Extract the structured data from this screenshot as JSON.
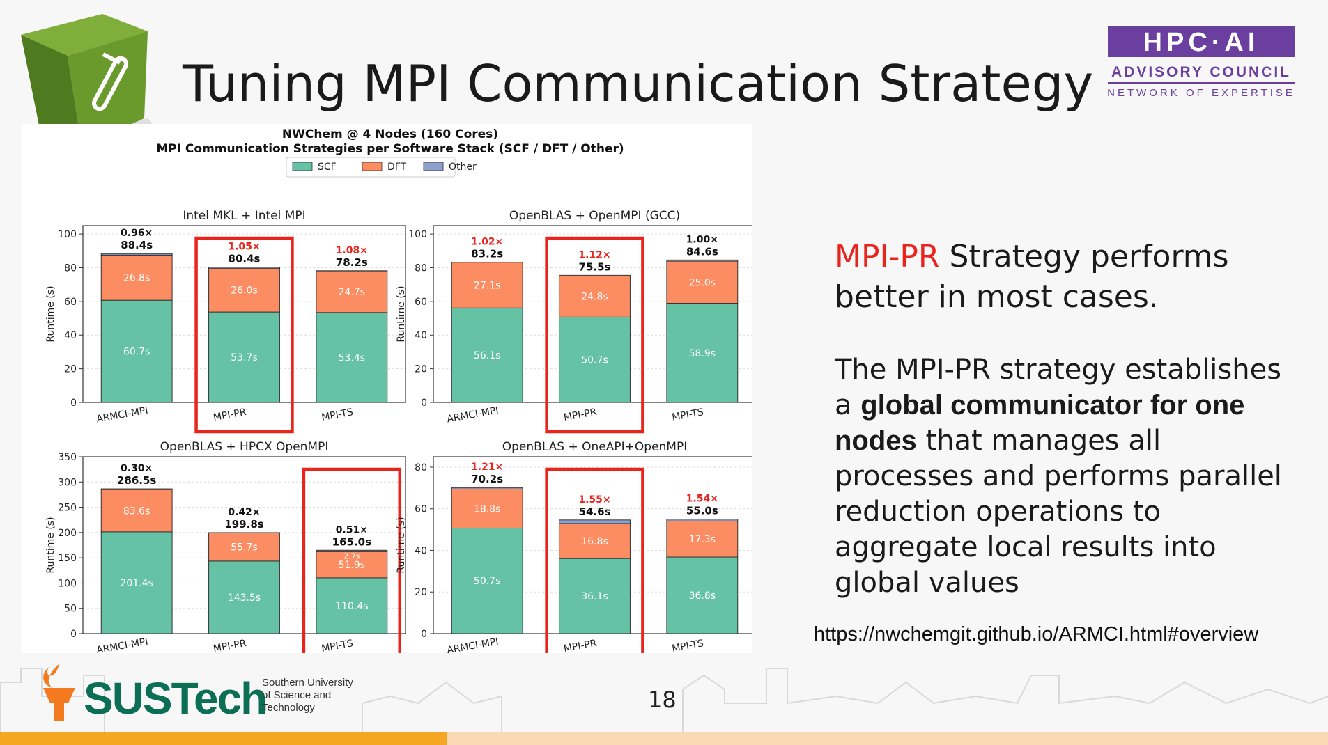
{
  "slide": {
    "title": "Tuning MPI Communication Strategy",
    "page_number": "18",
    "url": "https://nwchemgit.github.io/ARMCI.html#overview",
    "side_heading_highlight": "MPI-PR",
    "side_heading_rest": " Strategy performs better in most cases.",
    "side_body": {
      "part1": "The MPI-PR strategy establishes a ",
      "bold": "global communicator for one nodes",
      "part2": " that manages all processes and performs parallel reduction operations to aggregate local results into global values"
    },
    "hpc_logo": {
      "line1": "HPC·AI",
      "line2": "ADVISORY COUNCIL",
      "line3": "NETWORK OF EXPERTISE"
    },
    "sustech": {
      "name": "SUSTech",
      "sub": [
        "Southern University",
        "of Science and",
        "Technology"
      ]
    },
    "colors": {
      "scf": "#66c2a5",
      "dft": "#fc8d62",
      "other": "#8da0cb",
      "highlight": "#e8241d",
      "hpc_purple": "#6b3fa0"
    }
  },
  "chart_data": {
    "title": "NWChem @ 4 Nodes (160 Cores)",
    "subtitle": "MPI Communication Strategies per Software Stack (SCF / DFT / Other)",
    "legend": [
      "SCF",
      "DFT",
      "Other"
    ],
    "legend_placement": "top-center",
    "type": "bar",
    "stacked": true,
    "grid": true,
    "subplots": [
      {
        "title": "Intel MKL + Intel MPI",
        "ylabel": "Runtime (s)",
        "ylim": [
          0,
          105
        ],
        "yticks": [
          0,
          20,
          40,
          60,
          80,
          100
        ],
        "categories": [
          "ARMCI-MPI",
          "MPI-PR",
          "MPI-TS"
        ],
        "scf": [
          60.7,
          53.7,
          53.4
        ],
        "dft": [
          26.8,
          26.0,
          24.7
        ],
        "other": [
          0.9,
          0.7,
          0.1
        ],
        "scf_labels": [
          "60.7s",
          "53.7s",
          "53.4s"
        ],
        "dft_labels": [
          "26.8s",
          "26.0s",
          "24.7s"
        ],
        "speedups": [
          "0.96×",
          "1.05×",
          "1.08×"
        ],
        "totals": [
          "88.4s",
          "80.4s",
          "78.2s"
        ],
        "speedup_highlight": [
          false,
          true,
          true
        ],
        "boxed": 1
      },
      {
        "title": "OpenBLAS + OpenMPI (GCC)",
        "ylabel": "Runtime (s)",
        "ylim": [
          0,
          105
        ],
        "yticks": [
          0,
          20,
          40,
          60,
          80,
          100
        ],
        "categories": [
          "ARMCI-MPI",
          "MPI-PR",
          "MPI-TS"
        ],
        "scf": [
          56.1,
          50.7,
          58.9
        ],
        "dft": [
          27.1,
          24.8,
          25.0
        ],
        "other": [
          0.0,
          0.0,
          0.7
        ],
        "scf_labels": [
          "56.1s",
          "50.7s",
          "58.9s"
        ],
        "dft_labels": [
          "27.1s",
          "24.8s",
          "25.0s"
        ],
        "speedups": [
          "1.02×",
          "1.12×",
          "1.00×"
        ],
        "totals": [
          "83.2s",
          "75.5s",
          "84.6s"
        ],
        "speedup_highlight": [
          true,
          true,
          false
        ],
        "boxed": 1
      },
      {
        "title": "OpenBLAS + HPCX OpenMPI",
        "ylabel": "Runtime (s)",
        "ylim": [
          0,
          350
        ],
        "yticks": [
          0,
          50,
          100,
          150,
          200,
          250,
          300,
          350
        ],
        "categories": [
          "ARMCI-MPI",
          "MPI-PR",
          "MPI-TS"
        ],
        "scf": [
          201.4,
          143.5,
          110.4
        ],
        "dft": [
          83.6,
          55.7,
          51.9
        ],
        "other": [
          1.5,
          0.6,
          2.7
        ],
        "scf_labels": [
          "201.4s",
          "143.5s",
          "110.4s"
        ],
        "dft_labels": [
          "83.6s",
          "55.7s",
          "51.9s"
        ],
        "other_labels": [
          "",
          "",
          "2.7s"
        ],
        "speedups": [
          "0.30×",
          "0.42×",
          "0.51×"
        ],
        "totals": [
          "286.5s",
          "199.8s",
          "165.0s"
        ],
        "speedup_highlight": [
          false,
          false,
          false
        ],
        "boxed": 2
      },
      {
        "title": "OpenBLAS + OneAPI+OpenMPI",
        "ylabel": "Runtime (s)",
        "ylim": [
          0,
          85
        ],
        "yticks": [
          0,
          20,
          40,
          60,
          80
        ],
        "categories": [
          "ARMCI-MPI",
          "MPI-PR",
          "MPI-TS"
        ],
        "scf": [
          50.7,
          36.1,
          36.8
        ],
        "dft": [
          18.8,
          16.8,
          17.3
        ],
        "other": [
          0.7,
          1.7,
          0.9
        ],
        "scf_labels": [
          "50.7s",
          "36.1s",
          "36.8s"
        ],
        "dft_labels": [
          "18.8s",
          "16.8s",
          "17.3s"
        ],
        "speedups": [
          "1.21×",
          "1.55×",
          "1.54×"
        ],
        "totals": [
          "70.2s",
          "54.6s",
          "55.0s"
        ],
        "speedup_highlight": [
          true,
          true,
          true
        ],
        "boxed": 1
      }
    ]
  }
}
